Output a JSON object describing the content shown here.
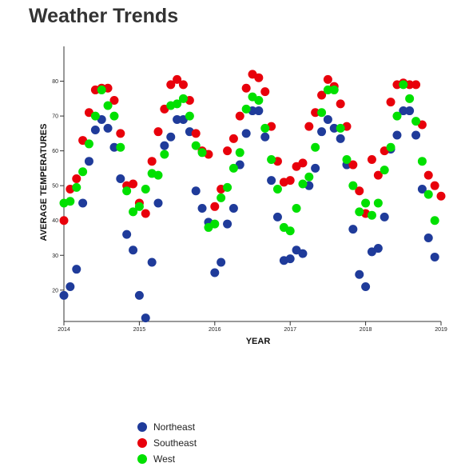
{
  "page": {
    "title": "Weather Trends"
  },
  "chart_data": {
    "type": "scatter",
    "xlabel": "YEAR",
    "ylabel": "AVERAGE TEMPERATURES",
    "x_ticks": [
      "2014",
      "2015",
      "2016",
      "2017",
      "2018",
      "2019"
    ],
    "y_ticks": [
      20,
      30,
      40,
      50,
      60,
      70,
      80
    ],
    "xlim": [
      2014,
      2019
    ],
    "ylim": [
      11,
      90
    ],
    "legend_position": "bottom-left",
    "grid": false,
    "series": [
      {
        "name": "Northeast",
        "color": "#1f3b9a",
        "x": [
          2014.0,
          2014.083,
          2014.167,
          2014.25,
          2014.333,
          2014.417,
          2014.5,
          2014.583,
          2014.667,
          2014.75,
          2014.833,
          2014.917,
          2015.0,
          2015.083,
          2015.167,
          2015.25,
          2015.333,
          2015.417,
          2015.5,
          2015.583,
          2015.667,
          2015.75,
          2015.833,
          2015.917,
          2016.0,
          2016.083,
          2016.167,
          2016.25,
          2016.333,
          2016.417,
          2016.5,
          2016.583,
          2016.667,
          2016.75,
          2016.833,
          2016.917,
          2017.0,
          2017.083,
          2017.167,
          2017.25,
          2017.333,
          2017.417,
          2017.5,
          2017.583,
          2017.667,
          2017.75,
          2017.833,
          2017.917,
          2018.0,
          2018.083,
          2018.167,
          2018.25,
          2018.333,
          2018.417,
          2018.5,
          2018.583,
          2018.667,
          2018.75,
          2018.833,
          2018.917
        ],
        "y": [
          18.5,
          21,
          26,
          45,
          57,
          66,
          69,
          66.5,
          61,
          52,
          36,
          31.5,
          18.5,
          12,
          28,
          45,
          61.5,
          64,
          69,
          69,
          65.5,
          48.5,
          43.5,
          39.5,
          25,
          28,
          39,
          43.5,
          56,
          65,
          71.5,
          71.5,
          64,
          51.5,
          41,
          28.5,
          29,
          31.5,
          30.5,
          50,
          55,
          65.5,
          69,
          66.5,
          63.5,
          56,
          37.5,
          24.5,
          21,
          31,
          32,
          41,
          60.5,
          64.5,
          71.5,
          71.5,
          64.5,
          49,
          35,
          29.5
        ]
      },
      {
        "name": "Southeast",
        "color": "#e8000b",
        "x": [
          2014.0,
          2014.083,
          2014.167,
          2014.25,
          2014.333,
          2014.417,
          2014.5,
          2014.583,
          2014.667,
          2014.75,
          2014.833,
          2014.917,
          2015.0,
          2015.083,
          2015.167,
          2015.25,
          2015.333,
          2015.417,
          2015.5,
          2015.583,
          2015.667,
          2015.75,
          2015.833,
          2015.917,
          2016.0,
          2016.083,
          2016.167,
          2016.25,
          2016.333,
          2016.417,
          2016.5,
          2016.583,
          2016.667,
          2016.75,
          2016.833,
          2016.917,
          2017.0,
          2017.083,
          2017.167,
          2017.25,
          2017.333,
          2017.417,
          2017.5,
          2017.583,
          2017.667,
          2017.75,
          2017.833,
          2017.917,
          2018.0,
          2018.083,
          2018.167,
          2018.25,
          2018.333,
          2018.417,
          2018.5,
          2018.583,
          2018.667,
          2018.75,
          2018.833,
          2018.917,
          2019.0
        ],
        "y": [
          40,
          49,
          52,
          63,
          71,
          77.5,
          78,
          78,
          74.5,
          65,
          50,
          50.5,
          45,
          42,
          57,
          65.5,
          72,
          79,
          80.5,
          79,
          74.5,
          65,
          60,
          59,
          44,
          49,
          60,
          63.5,
          70,
          78,
          82,
          81,
          77,
          67,
          57,
          51,
          51.5,
          55.5,
          56.5,
          67,
          71,
          76,
          80.5,
          78.5,
          73.5,
          67,
          56,
          48.5,
          42,
          57.5,
          53,
          60,
          74,
          79,
          79.5,
          79,
          79,
          67.5,
          53,
          50,
          47
        ]
      },
      {
        "name": "West",
        "color": "#00e000",
        "x": [
          2014.0,
          2014.083,
          2014.167,
          2014.25,
          2014.333,
          2014.417,
          2014.5,
          2014.583,
          2014.667,
          2014.75,
          2014.833,
          2014.917,
          2015.0,
          2015.083,
          2015.167,
          2015.25,
          2015.333,
          2015.417,
          2015.5,
          2015.583,
          2015.667,
          2015.75,
          2015.833,
          2015.917,
          2016.0,
          2016.083,
          2016.167,
          2016.25,
          2016.333,
          2016.417,
          2016.5,
          2016.583,
          2016.667,
          2016.75,
          2016.833,
          2016.917,
          2017.0,
          2017.083,
          2017.167,
          2017.25,
          2017.333,
          2017.417,
          2017.5,
          2017.583,
          2017.667,
          2017.75,
          2017.833,
          2017.917,
          2018.0,
          2018.083,
          2018.167,
          2018.25,
          2018.333,
          2018.417,
          2018.5,
          2018.583,
          2018.667,
          2018.75,
          2018.833,
          2018.917
        ],
        "y": [
          45,
          45.5,
          49.5,
          54,
          62,
          70,
          77.5,
          73,
          70,
          61,
          48.5,
          42.5,
          44,
          49,
          53.5,
          53,
          59,
          73,
          73.5,
          75,
          70,
          61.5,
          59.5,
          38,
          39,
          46.5,
          49.5,
          55,
          59.5,
          72,
          75.5,
          74.5,
          66.5,
          57.5,
          49,
          38,
          37,
          43.5,
          50.5,
          52.5,
          61,
          71,
          77.5,
          77.5,
          66.5,
          57.5,
          50,
          42.5,
          45,
          41.5,
          45,
          54.5,
          61,
          70,
          79,
          75,
          68.5,
          57,
          47.5,
          40
        ]
      }
    ]
  }
}
